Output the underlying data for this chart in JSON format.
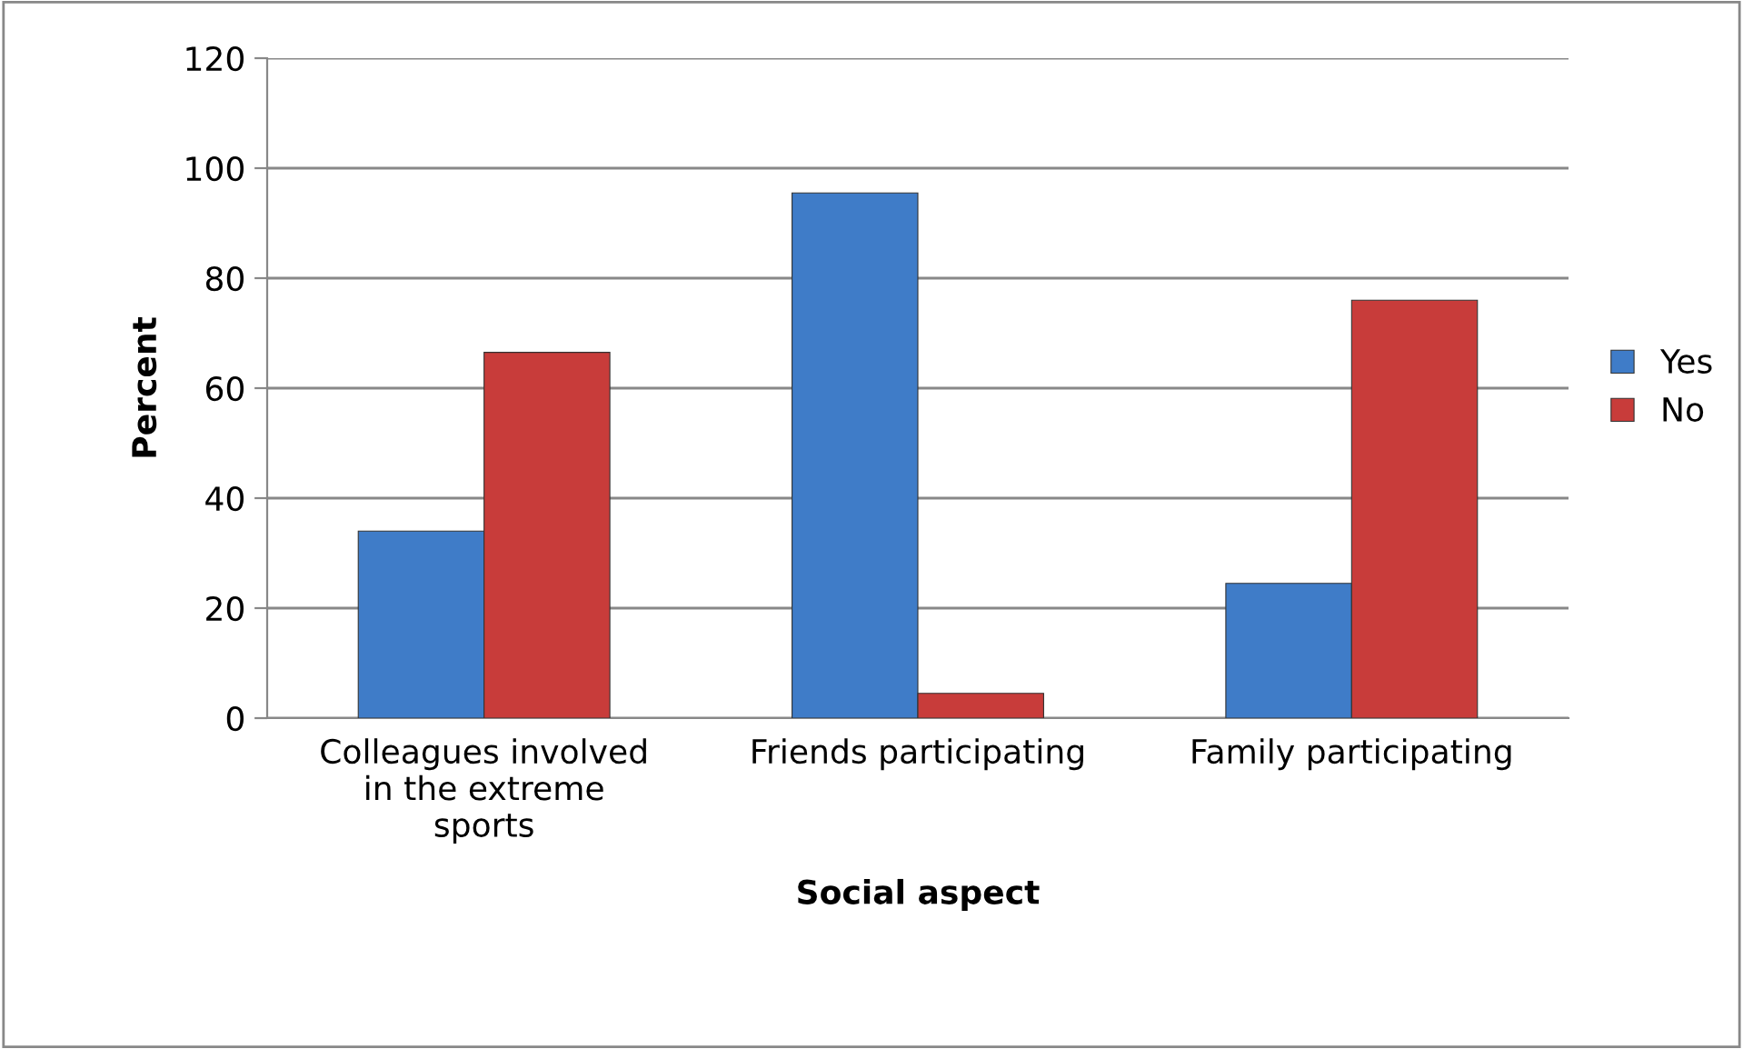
{
  "chart_data": {
    "type": "bar",
    "xlabel": "Social aspect",
    "ylabel": "Percent",
    "categories": [
      "Colleagues involved\nin the extreme\nsports",
      "Friends participating",
      "Family participating"
    ],
    "series": [
      {
        "name": "Yes",
        "color": "#3f7cc8",
        "values": [
          34,
          95.5,
          24.5
        ]
      },
      {
        "name": "No",
        "color": "#c83c3a",
        "values": [
          66.5,
          4.5,
          76
        ]
      }
    ],
    "ylim": [
      0,
      120
    ],
    "yticks": [
      0,
      20,
      40,
      60,
      80,
      100,
      120
    ],
    "grid": "y",
    "legend": "right"
  }
}
